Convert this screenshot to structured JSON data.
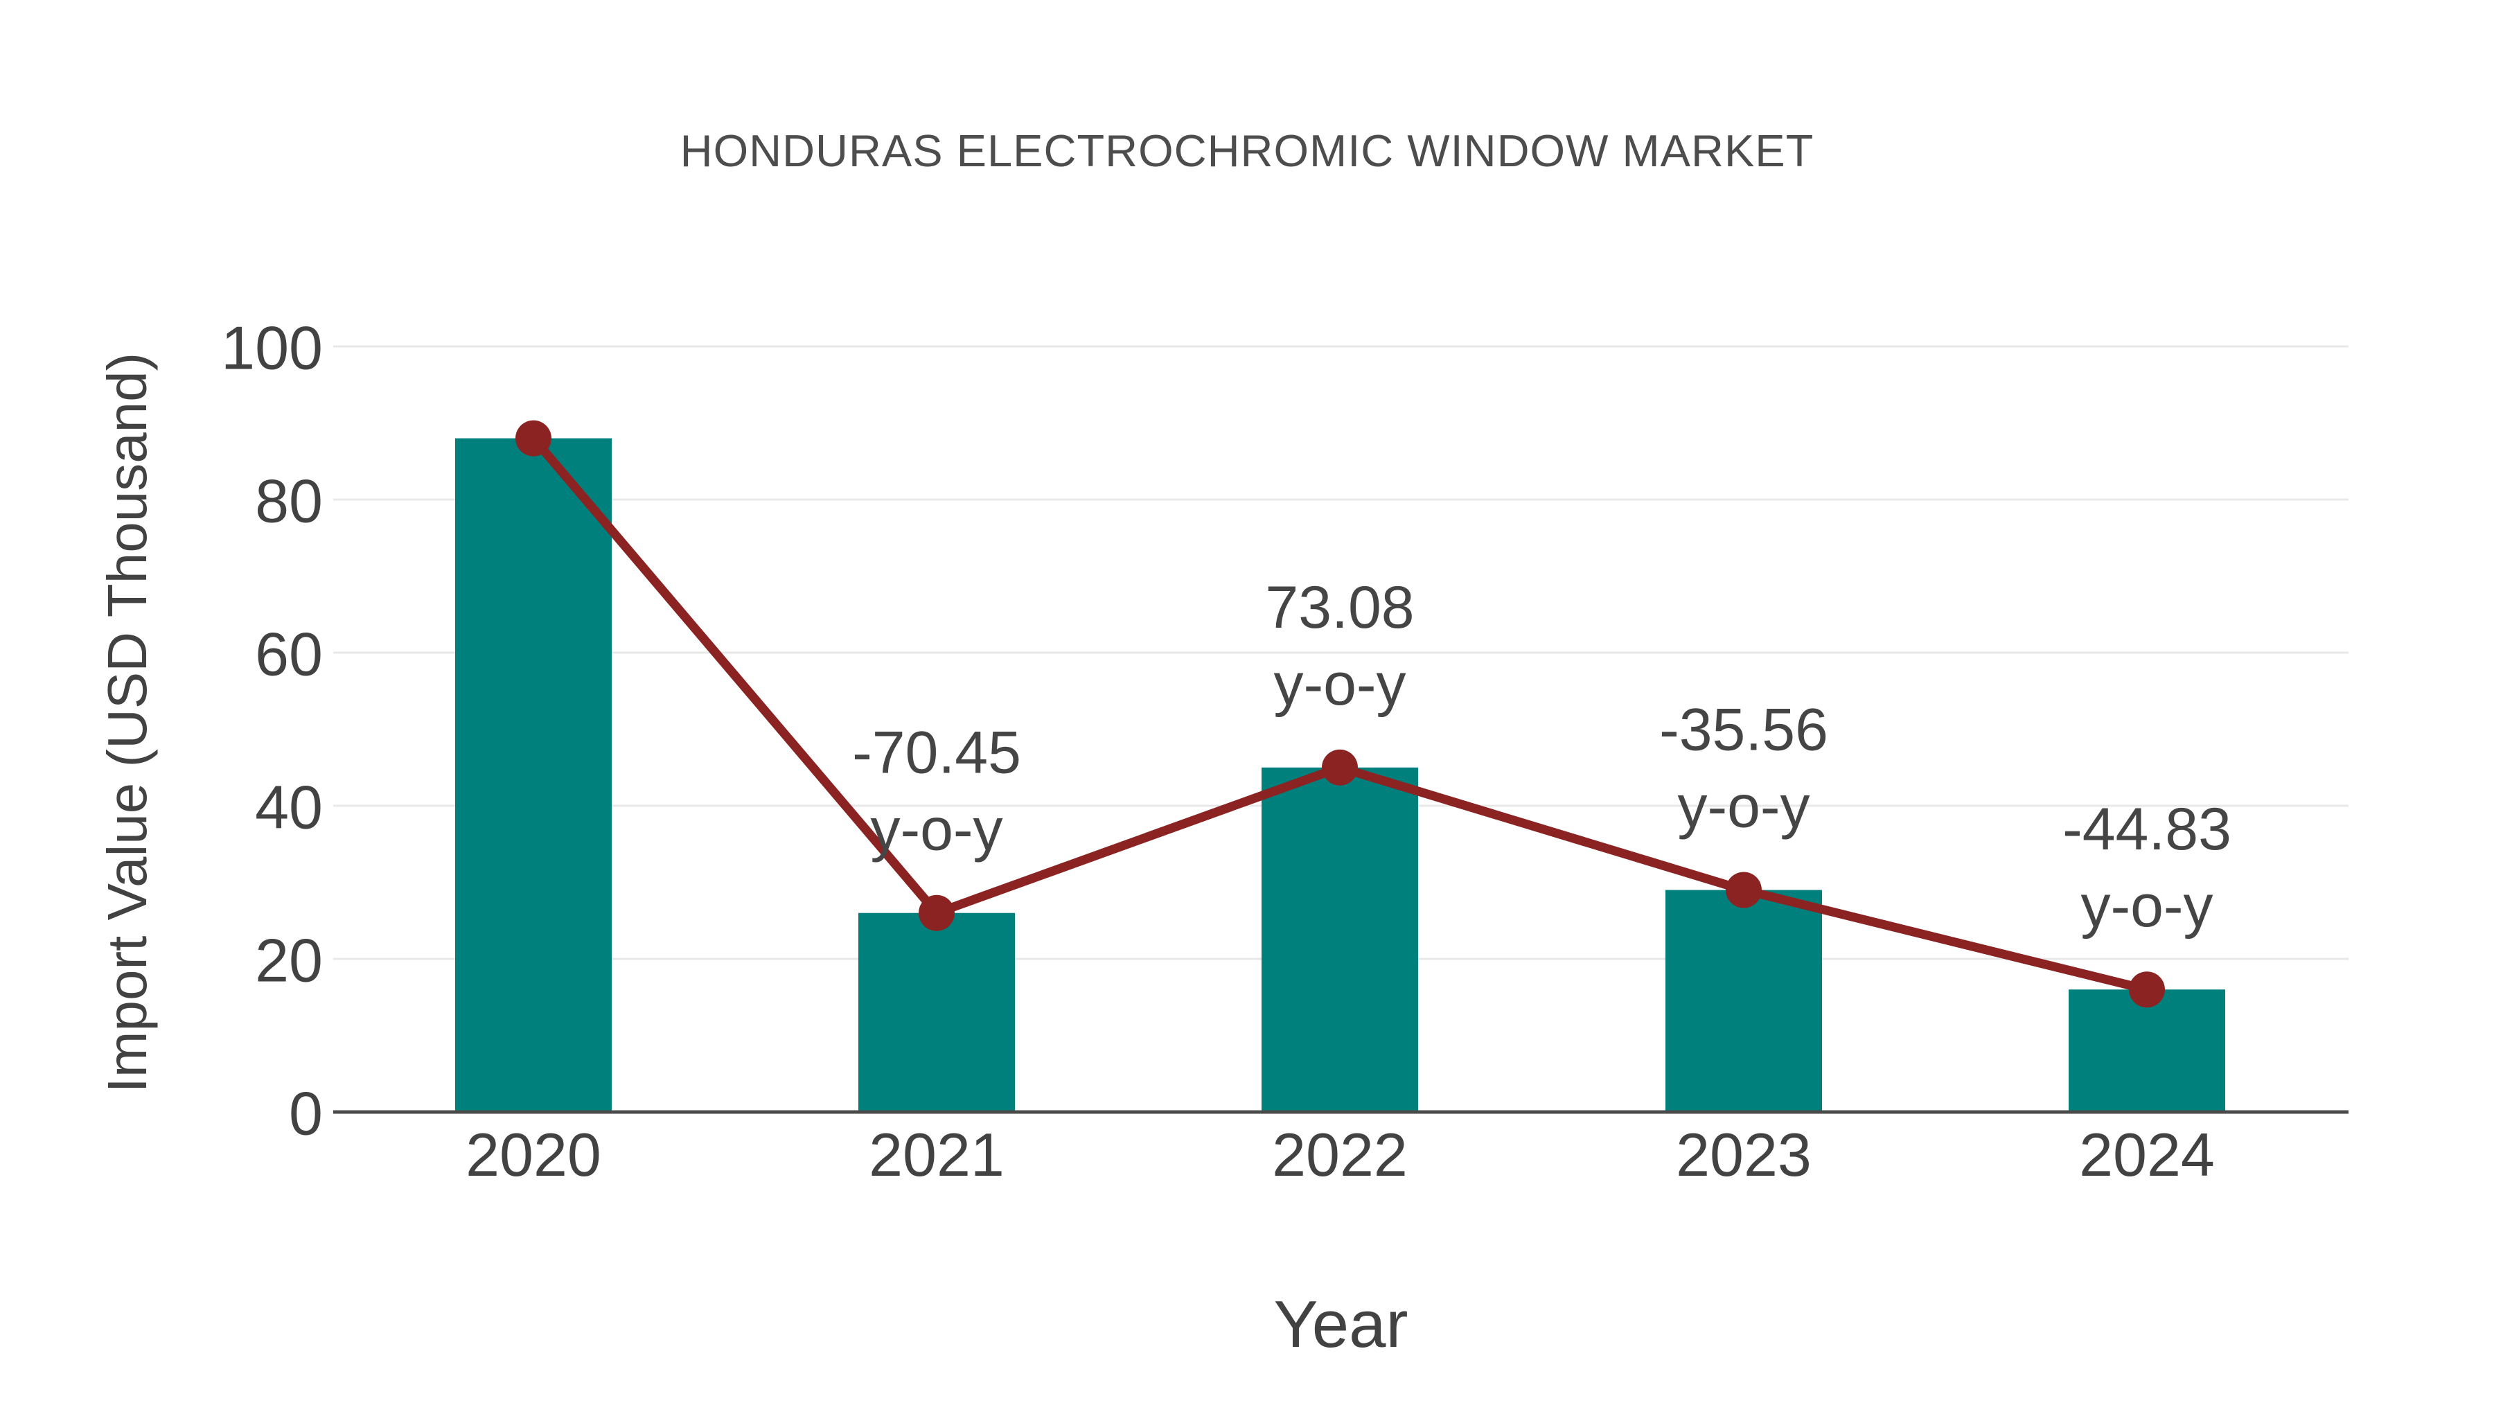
{
  "title": "HONDURAS ELECTROCHROMIC WINDOW MARKET",
  "chart_data": {
    "type": "bar",
    "title": "HONDURAS ELECTROCHROMIC WINDOW MARKET",
    "xlabel": "Year",
    "ylabel": "Import Value (USD Thousand)",
    "categories": [
      "2020",
      "2021",
      "2022",
      "2023",
      "2024"
    ],
    "series": [
      {
        "name": "Import Value bars",
        "type": "bar",
        "values": [
          88,
          26,
          45,
          29,
          16
        ]
      },
      {
        "name": "Import Value trend line",
        "type": "line",
        "values": [
          88,
          26,
          45,
          29,
          16
        ]
      }
    ],
    "annotations": [
      {
        "category": "2021",
        "value_label": "-70.45",
        "suffix_label": "y-o-y"
      },
      {
        "category": "2022",
        "value_label": "73.08",
        "suffix_label": "y-o-y"
      },
      {
        "category": "2023",
        "value_label": "-35.56",
        "suffix_label": "y-o-y"
      },
      {
        "category": "2024",
        "value_label": "-44.83",
        "suffix_label": "y-o-y"
      }
    ],
    "ylim": [
      0,
      100
    ],
    "yticks": [
      0,
      20,
      40,
      60,
      80,
      100
    ],
    "grid": "horizontal",
    "legend": "none",
    "colors": {
      "bar": "#00807C",
      "line": "#8B2323",
      "marker": "#8B2323",
      "grid": "#E8E8E8",
      "axis": "#4A4A4A",
      "tick_text": "#424242",
      "annotation_text": "#454545",
      "title_text": "#4D4D4D",
      "background": "#FFFFFF"
    }
  }
}
